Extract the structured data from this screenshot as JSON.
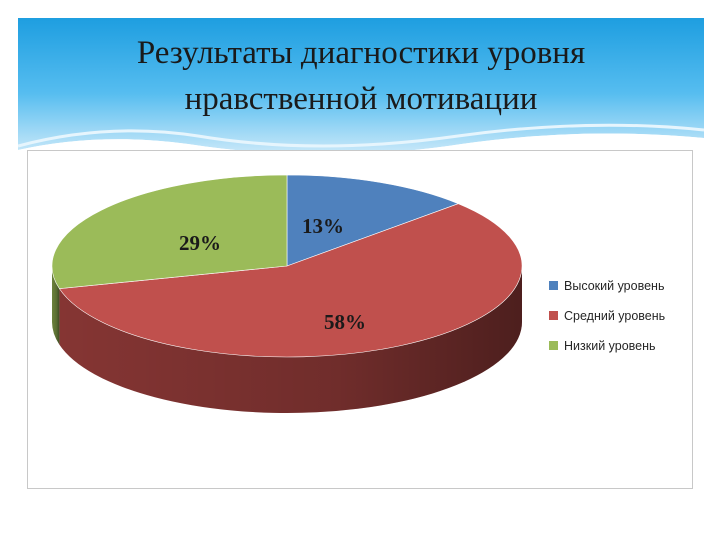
{
  "slide": {
    "title_line1": "Результаты диагностики уровня",
    "title_line2": "нравственной мотивации",
    "header_color": "#3fb0e8"
  },
  "chart_data": {
    "type": "pie",
    "title": "",
    "three_d": true,
    "legend_position": "right",
    "categories": [
      "Высокий уровень",
      "Средний уровень",
      "Низкий уровень"
    ],
    "values": [
      13,
      58,
      29
    ],
    "labels": [
      "13%",
      "58%",
      "29%"
    ],
    "colors": [
      "#4f81bd",
      "#c0504d",
      "#9bbb59"
    ],
    "side_colors": [
      "#385d8a",
      "#8c3836",
      "#71893f"
    ]
  }
}
